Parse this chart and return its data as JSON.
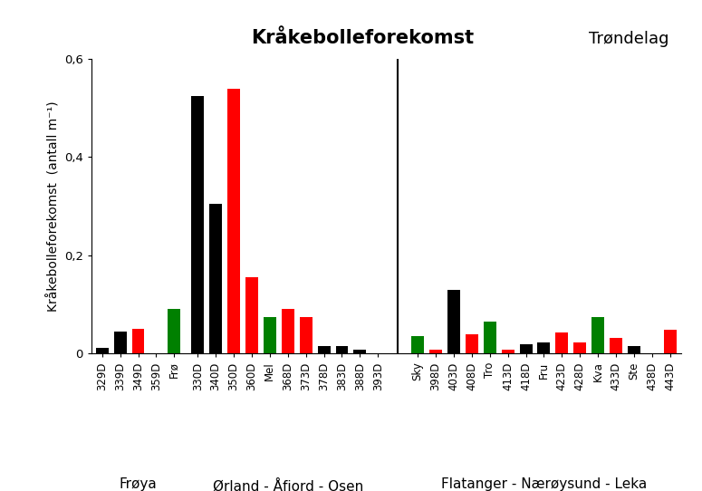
{
  "title": "Kråkebolleforekomst",
  "region": "Trøndelag",
  "ylabel": "Kråkebolleforekomst  (antall m⁻¹)",
  "ylim": [
    0,
    0.6
  ],
  "yticks": [
    0,
    0.2,
    0.4,
    0.6
  ],
  "ytick_labels": [
    "0",
    "0,2",
    "0,4",
    "0,6"
  ],
  "groups": [
    {
      "name": "Frøya",
      "bars": [
        {
          "label": "329D",
          "value": 0.012,
          "color": "black"
        },
        {
          "label": "339D",
          "value": 0.045,
          "color": "black"
        },
        {
          "label": "349D",
          "value": 0.05,
          "color": "red"
        },
        {
          "label": "359D",
          "value": 0.0,
          "color": "black"
        },
        {
          "label": "Frø",
          "value": 0.09,
          "color": "green"
        }
      ]
    },
    {
      "name": "Ørland - Åfjord - Osen",
      "bars": [
        {
          "label": "330D",
          "value": 0.525,
          "color": "black"
        },
        {
          "label": "340D",
          "value": 0.305,
          "color": "black"
        },
        {
          "label": "350D",
          "value": 0.54,
          "color": "red"
        },
        {
          "label": "360D",
          "value": 0.155,
          "color": "red"
        },
        {
          "label": "Mel",
          "value": 0.075,
          "color": "green"
        },
        {
          "label": "368D",
          "value": 0.09,
          "color": "red"
        },
        {
          "label": "373D",
          "value": 0.075,
          "color": "red"
        },
        {
          "label": "378D",
          "value": 0.015,
          "color": "black"
        },
        {
          "label": "383D",
          "value": 0.015,
          "color": "black"
        },
        {
          "label": "388D",
          "value": 0.008,
          "color": "black"
        },
        {
          "label": "393D",
          "value": 0.0,
          "color": "black"
        }
      ]
    },
    {
      "name": "Flatanger - Nærøysund - Leka",
      "bars": [
        {
          "label": "Sky",
          "value": 0.036,
          "color": "green"
        },
        {
          "label": "398D",
          "value": 0.008,
          "color": "red"
        },
        {
          "label": "403D",
          "value": 0.13,
          "color": "black"
        },
        {
          "label": "408D",
          "value": 0.04,
          "color": "red"
        },
        {
          "label": "Tro",
          "value": 0.065,
          "color": "green"
        },
        {
          "label": "413D",
          "value": 0.008,
          "color": "red"
        },
        {
          "label": "418D",
          "value": 0.018,
          "color": "black"
        },
        {
          "label": "Fru",
          "value": 0.022,
          "color": "black"
        },
        {
          "label": "423D",
          "value": 0.042,
          "color": "red"
        },
        {
          "label": "428D",
          "value": 0.022,
          "color": "red"
        },
        {
          "label": "Kva",
          "value": 0.075,
          "color": "green"
        },
        {
          "label": "433D",
          "value": 0.032,
          "color": "red"
        },
        {
          "label": "Ste",
          "value": 0.015,
          "color": "black"
        },
        {
          "label": "438D",
          "value": 0.0,
          "color": "black"
        },
        {
          "label": "443D",
          "value": 0.048,
          "color": "red"
        }
      ]
    }
  ],
  "bar_width": 0.7,
  "background_color": "#ffffff",
  "title_fontsize": 15,
  "region_fontsize": 13,
  "ylabel_fontsize": 10,
  "tick_label_fontsize": 8.5,
  "group_label_fontsize": 11
}
